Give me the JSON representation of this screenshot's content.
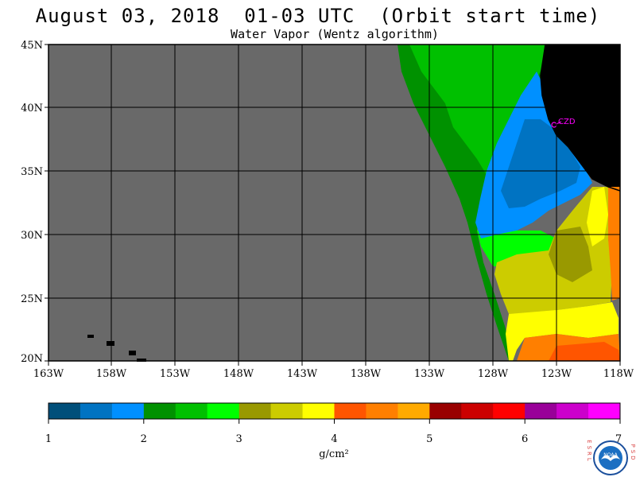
{
  "title": "August 03, 2018  01-03 UTC  (Orbit start time)",
  "subtitle": "Water Vapor (Wentz algorithm)",
  "map": {
    "lat_labels": [
      "45N",
      "40N",
      "35N",
      "30N",
      "25N",
      "20N"
    ],
    "lon_labels": [
      "163W",
      "158W",
      "153W",
      "148W",
      "143W",
      "138W",
      "133W",
      "128W",
      "123W",
      "118W"
    ],
    "lat_range": [
      20,
      45
    ],
    "lon_range": [
      -163,
      -118
    ],
    "station_label": "CZD",
    "colors": {
      "no_data": "#696969",
      "land": "#000000",
      "station": "#ff00ff"
    }
  },
  "colorbar": {
    "tick_labels": [
      "1",
      "2",
      "3",
      "4",
      "5",
      "6",
      "7"
    ],
    "units": "g/cm²",
    "colors": [
      "#004f7a",
      "#0073c2",
      "#0090ff",
      "#009100",
      "#00c000",
      "#00ff00",
      "#999900",
      "#cccc00",
      "#ffff00",
      "#ff5500",
      "#ff7f00",
      "#ffaa00",
      "#990000",
      "#cc0000",
      "#ff0000",
      "#990099",
      "#cc00cc",
      "#ff00ff"
    ]
  },
  "logo": {
    "left_letters": "ESRL",
    "right_letters": "PSD",
    "center_text": "NOAA"
  }
}
